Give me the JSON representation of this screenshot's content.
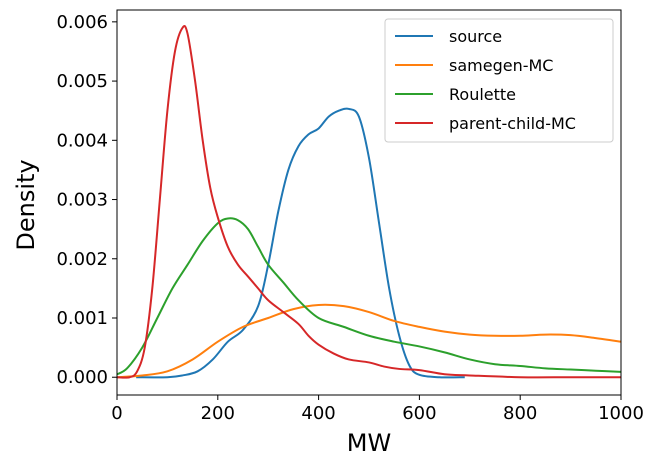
{
  "chart_data": {
    "type": "line",
    "title": "",
    "xlabel": "MW",
    "ylabel": "Density",
    "xlim": [
      0,
      1000
    ],
    "ylim": [
      -0.0003,
      0.0062
    ],
    "x_ticks": [
      0,
      200,
      400,
      600,
      800,
      1000
    ],
    "x_tick_labels": [
      "0",
      "200",
      "400",
      "600",
      "800",
      "1000"
    ],
    "y_ticks": [
      0.0,
      0.001,
      0.002,
      0.003,
      0.004,
      0.005,
      0.006
    ],
    "y_tick_labels": [
      "0.000",
      "0.001",
      "0.002",
      "0.003",
      "0.004",
      "0.005",
      "0.006"
    ],
    "grid": false,
    "legend_position": "top-right",
    "series": [
      {
        "name": "source",
        "color": "#1f77b4",
        "points": [
          [
            38,
            0.0
          ],
          [
            100,
            0.0
          ],
          [
            130,
            3e-05
          ],
          [
            160,
            0.0001
          ],
          [
            190,
            0.0003
          ],
          [
            220,
            0.0006
          ],
          [
            250,
            0.0008
          ],
          [
            280,
            0.0012
          ],
          [
            300,
            0.0019
          ],
          [
            320,
            0.0028
          ],
          [
            340,
            0.0035
          ],
          [
            360,
            0.0039
          ],
          [
            380,
            0.0041
          ],
          [
            400,
            0.0042
          ],
          [
            420,
            0.0044
          ],
          [
            440,
            0.0045
          ],
          [
            460,
            0.00453
          ],
          [
            480,
            0.0044
          ],
          [
            500,
            0.0037
          ],
          [
            520,
            0.0026
          ],
          [
            540,
            0.0015
          ],
          [
            560,
            0.0007
          ],
          [
            580,
            0.0002
          ],
          [
            600,
            4e-05
          ],
          [
            640,
            0.0
          ],
          [
            690,
            0.0
          ]
        ]
      },
      {
        "name": "samegen-MC",
        "color": "#ff7f0e",
        "points": [
          [
            0,
            0.0
          ],
          [
            50,
            3e-05
          ],
          [
            100,
            0.0001
          ],
          [
            150,
            0.0003
          ],
          [
            200,
            0.0006
          ],
          [
            250,
            0.00085
          ],
          [
            300,
            0.001
          ],
          [
            350,
            0.00115
          ],
          [
            400,
            0.00122
          ],
          [
            450,
            0.0012
          ],
          [
            500,
            0.0011
          ],
          [
            550,
            0.00095
          ],
          [
            600,
            0.00085
          ],
          [
            650,
            0.00077
          ],
          [
            700,
            0.00072
          ],
          [
            750,
            0.0007
          ],
          [
            800,
            0.0007
          ],
          [
            850,
            0.00072
          ],
          [
            900,
            0.00071
          ],
          [
            950,
            0.00066
          ],
          [
            1000,
            0.0006
          ]
        ]
      },
      {
        "name": "Roulette",
        "color": "#2ca02c",
        "points": [
          [
            0,
            5e-05
          ],
          [
            20,
            0.00015
          ],
          [
            50,
            0.0005
          ],
          [
            80,
            0.001
          ],
          [
            110,
            0.0015
          ],
          [
            140,
            0.0019
          ],
          [
            170,
            0.0023
          ],
          [
            200,
            0.0026
          ],
          [
            220,
            0.00268
          ],
          [
            240,
            0.00265
          ],
          [
            260,
            0.0025
          ],
          [
            280,
            0.0022
          ],
          [
            300,
            0.0019
          ],
          [
            330,
            0.0016
          ],
          [
            360,
            0.0013
          ],
          [
            400,
            0.001
          ],
          [
            450,
            0.00085
          ],
          [
            500,
            0.0007
          ],
          [
            550,
            0.0006
          ],
          [
            600,
            0.00052
          ],
          [
            650,
            0.00042
          ],
          [
            700,
            0.0003
          ],
          [
            750,
            0.00022
          ],
          [
            800,
            0.00019
          ],
          [
            850,
            0.00015
          ],
          [
            900,
            0.00013
          ],
          [
            950,
            0.00011
          ],
          [
            1000,
            9e-05
          ]
        ]
      },
      {
        "name": "parent-child-MC",
        "color": "#d62728",
        "points": [
          [
            0,
            0.0
          ],
          [
            25,
            0.0
          ],
          [
            40,
            0.0001
          ],
          [
            55,
            0.0005
          ],
          [
            70,
            0.0015
          ],
          [
            85,
            0.003
          ],
          [
            100,
            0.0045
          ],
          [
            115,
            0.0055
          ],
          [
            130,
            0.0059
          ],
          [
            140,
            0.0058
          ],
          [
            155,
            0.005
          ],
          [
            170,
            0.004
          ],
          [
            185,
            0.0032
          ],
          [
            200,
            0.0027
          ],
          [
            220,
            0.0022
          ],
          [
            240,
            0.0019
          ],
          [
            260,
            0.0017
          ],
          [
            280,
            0.0015
          ],
          [
            300,
            0.0013
          ],
          [
            330,
            0.0011
          ],
          [
            360,
            0.0009
          ],
          [
            380,
            0.0007
          ],
          [
            400,
            0.00055
          ],
          [
            430,
            0.0004
          ],
          [
            460,
            0.0003
          ],
          [
            500,
            0.00025
          ],
          [
            530,
            0.00018
          ],
          [
            560,
            0.00014
          ],
          [
            600,
            0.00012
          ],
          [
            650,
            5e-05
          ],
          [
            700,
            3e-05
          ],
          [
            800,
            0.0
          ],
          [
            900,
            0.0
          ],
          [
            1000,
            0.0
          ]
        ]
      }
    ]
  }
}
